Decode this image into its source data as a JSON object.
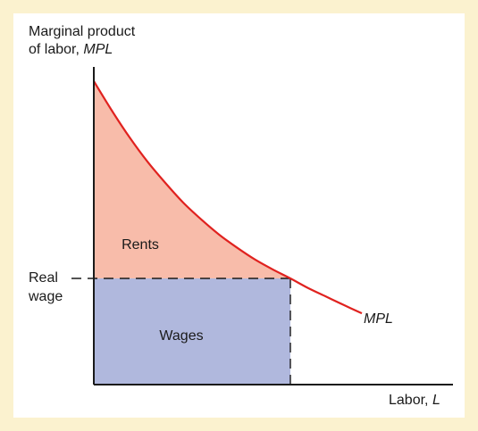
{
  "chart_data": {
    "type": "area",
    "ylabel": "Marginal product",
    "ylabel2": "of labor,",
    "ylabel_var": "MPL",
    "xlabel": "Labor,",
    "xlabel_var": "L",
    "curve_label": "MPL",
    "real_wage_line1": "Real",
    "real_wage_line2": "wage",
    "region_rents_label": "Rents",
    "region_wages_label": "Wages",
    "xlim": [
      0,
      1
    ],
    "ylim": [
      0,
      1
    ],
    "real_wage": 0.35,
    "equilibrium_labor": 0.55,
    "mpl_curve": {
      "name": "MPL",
      "x": [
        0.0,
        0.05,
        0.1,
        0.15,
        0.2,
        0.25,
        0.3,
        0.35,
        0.4,
        0.45,
        0.5,
        0.55,
        0.6,
        0.65,
        0.7,
        0.75
      ],
      "y": [
        1.0,
        0.904,
        0.815,
        0.735,
        0.665,
        0.6,
        0.545,
        0.495,
        0.452,
        0.413,
        0.38,
        0.35,
        0.318,
        0.29,
        0.262,
        0.235
      ]
    },
    "colors": {
      "curve": "#e0221f",
      "rents": "#f8bcaa",
      "wages": "#b0b8dd",
      "axis": "#1a1a1a",
      "background_frame": "#fbf2cf"
    }
  }
}
